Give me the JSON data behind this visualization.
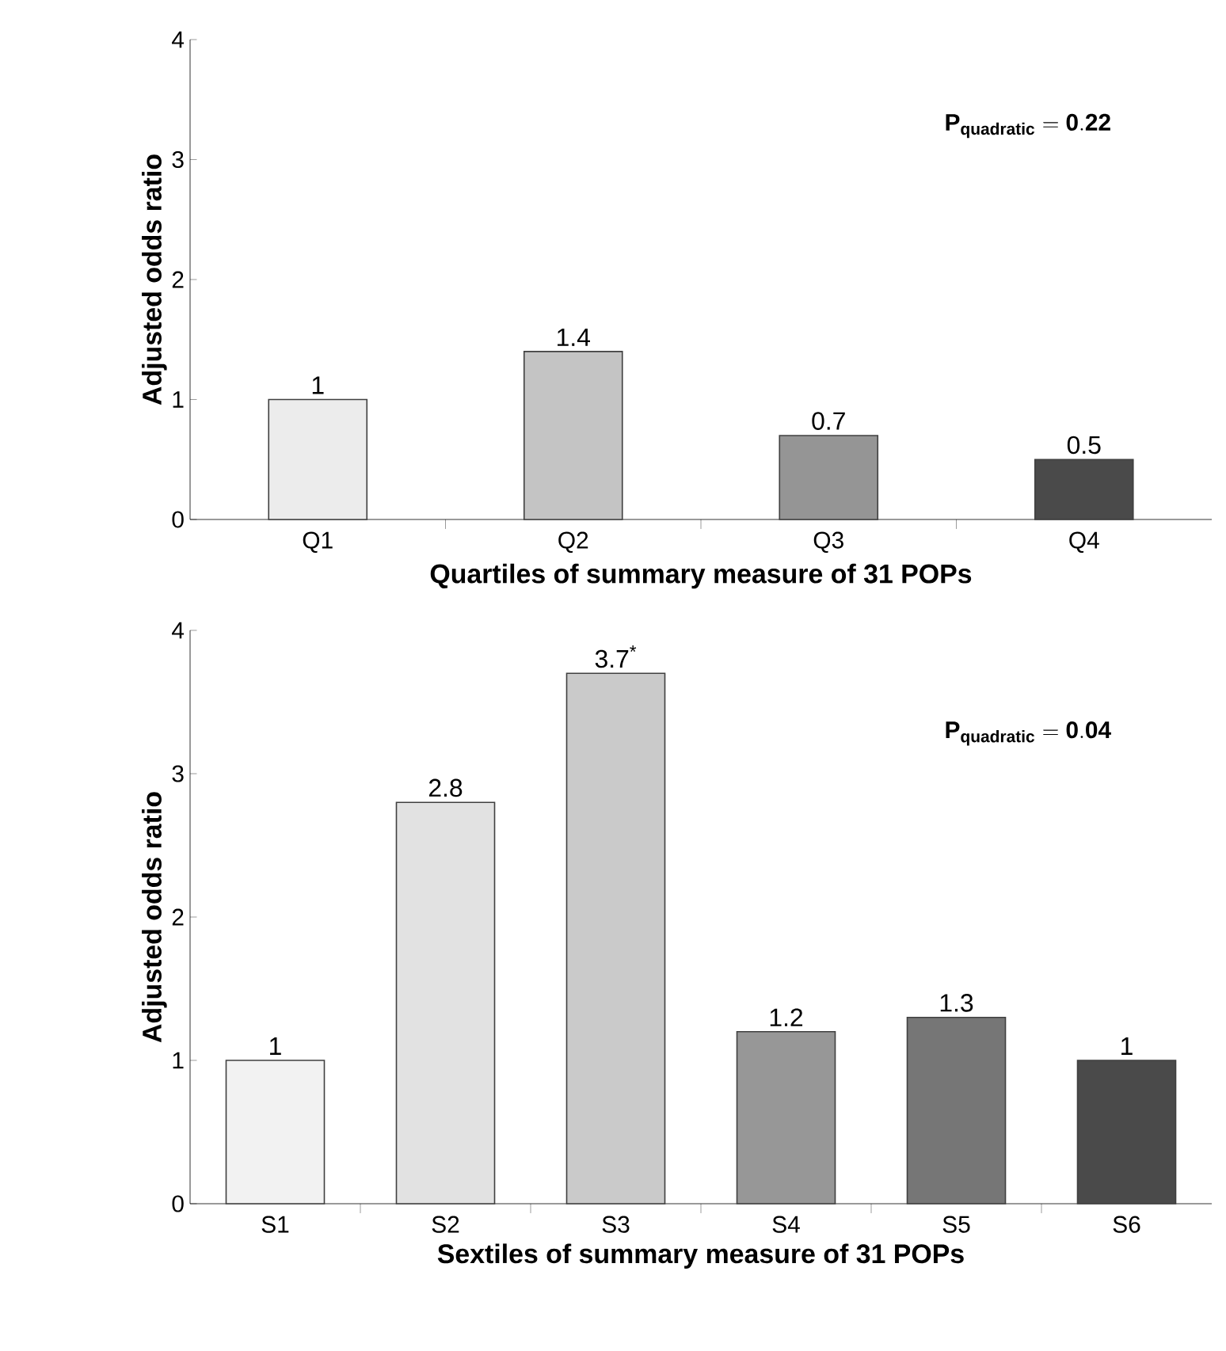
{
  "chart_data": [
    {
      "type": "bar",
      "categories": [
        "Q1",
        "Q2",
        "Q3",
        "Q4"
      ],
      "values": [
        1,
        1.4,
        0.7,
        0.5
      ],
      "colors": [
        "#ececec",
        "#c4c4c4",
        "#959595",
        "#4a4a4a"
      ],
      "data_labels": true,
      "ylim": [
        0,
        4
      ],
      "yticks": [
        0,
        1,
        2,
        3,
        4
      ],
      "xlabel": "Quartiles of summary measure of 31 POPs",
      "ylabel": "Adjusted odds ratio",
      "annotations": [
        "\\mathbf{P_{quadratic} = 0.22}"
      ]
    },
    {
      "type": "bar",
      "categories": [
        "S1",
        "S2",
        "S3",
        "S4",
        "S5",
        "S6"
      ],
      "values": [
        1,
        2.8,
        3.7,
        1.2,
        1.3,
        1
      ],
      "colors": [
        "#f2f2f2",
        "#e2e2e2",
        "#cacaca",
        "#979797",
        "#767676",
        "#4a4a4a"
      ],
      "value_labels": [
        "1",
        "2.8",
        "3.7$^{*}$",
        "1.2",
        "1.3",
        "1"
      ],
      "ylim": [
        0,
        4
      ],
      "yticks": [
        0,
        1,
        2,
        3,
        4
      ],
      "xlabel": "Sextiles of summary measure of 31 POPs",
      "ylabel": "Adjusted odds ratio",
      "annotations": [
        "\\mathbf{P_{quadratic} = 0.04}"
      ]
    }
  ]
}
